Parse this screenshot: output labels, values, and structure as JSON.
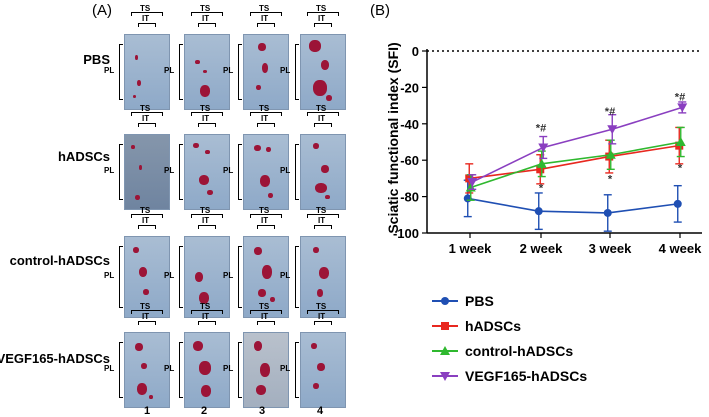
{
  "panel_a": {
    "label": "(A)",
    "top_label": "TS",
    "inner_label": "IT",
    "side_label": "PL",
    "rows": [
      "PBS",
      "hADSCs",
      "control-hADSCs",
      "VEGF165-hADSCs"
    ],
    "columns": [
      "1",
      "2",
      "3",
      "4"
    ]
  },
  "panel_b": {
    "label": "(B)"
  },
  "chart_data": {
    "type": "line",
    "title": "",
    "xlabel": "",
    "ylabel": "Sciatic functional index (SFI)",
    "categories": [
      "1 week",
      "2 week",
      "3 week",
      "4 week"
    ],
    "ylim": [
      -100,
      0
    ],
    "yticks": [
      0,
      -20,
      -40,
      -60,
      -80,
      -100
    ],
    "reference_line": 0,
    "series": [
      {
        "name": "PBS",
        "color": "#1f4fb3",
        "marker": "circle",
        "values": [
          -81,
          -88,
          -89,
          -84
        ],
        "errors": [
          10,
          10,
          10,
          10
        ]
      },
      {
        "name": "hADSCs",
        "color": "#e8281f",
        "marker": "square",
        "values": [
          -70,
          -65,
          -58,
          -52
        ],
        "errors": [
          8,
          8,
          9,
          10
        ]
      },
      {
        "name": "control-hADSCs",
        "color": "#2fb82f",
        "marker": "triangle",
        "values": [
          -75,
          -62,
          -57,
          -50
        ],
        "errors": [
          7,
          7,
          8,
          8
        ]
      },
      {
        "name": "VEGF165-hADSCs",
        "color": "#8a3fc0",
        "marker": "triangle-down",
        "values": [
          -72,
          -53,
          -43,
          -31
        ],
        "errors": [
          4,
          6,
          8,
          3
        ]
      }
    ],
    "annotations": [
      {
        "text": "*#",
        "category": "2 week",
        "value": -42
      },
      {
        "text": "*",
        "category": "2 week",
        "value": -75
      },
      {
        "text": "*#",
        "category": "3 week",
        "value": -33
      },
      {
        "text": "*",
        "category": "3 week",
        "value": -70
      },
      {
        "text": "*#",
        "category": "4 week",
        "value": -25
      },
      {
        "text": "*",
        "category": "4 week",
        "value": -64
      }
    ],
    "legend_position": "bottom"
  }
}
